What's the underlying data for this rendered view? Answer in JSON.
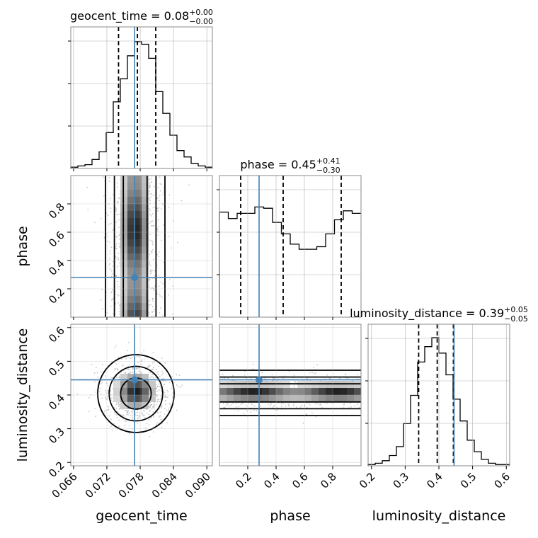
{
  "chart_data": {
    "type": "corner",
    "parameters": [
      "geocent_time",
      "phase",
      "luminosity_distance"
    ],
    "truth_color": "#4682b4",
    "truths": {
      "geocent_time": 0.077,
      "phase": 0.28,
      "luminosity_distance": 0.445
    },
    "axis_ranges": {
      "geocent_time": [
        0.0655,
        0.091
      ],
      "phase": [
        0.0,
        1.0
      ],
      "luminosity_distance": [
        0.19,
        0.61
      ]
    },
    "ticks": {
      "geocent_time": [
        "0.066",
        "0.072",
        "0.078",
        "0.084",
        "0.090"
      ],
      "phase": [
        "0.2",
        "0.4",
        "0.6",
        "0.8"
      ],
      "luminosity_distance": [
        "0.2",
        "0.3",
        "0.4",
        "0.5",
        "0.6"
      ]
    },
    "tick_values": {
      "geocent_time": [
        0.066,
        0.072,
        0.078,
        0.084,
        0.09
      ],
      "phase": [
        0.2,
        0.4,
        0.6,
        0.8
      ],
      "luminosity_distance": [
        0.2,
        0.3,
        0.4,
        0.5,
        0.6
      ]
    },
    "titles": [
      {
        "param": "geocent_time",
        "label": "geocent_time = 0.08",
        "sup": "+0.00",
        "sub": "−0.00"
      },
      {
        "param": "phase",
        "label": "phase = 0.45",
        "sup": "+0.41",
        "sub": "−0.30"
      },
      {
        "param": "luminosity_distance",
        "label": "luminosity_distance = 0.39",
        "sup": "+0.05",
        "sub": "−0.05"
      }
    ],
    "quantiles": {
      "geocent_time": [
        0.0741,
        0.0775,
        0.0808
      ],
      "phase": [
        0.15,
        0.45,
        0.86
      ],
      "luminosity_distance": [
        0.34,
        0.395,
        0.443
      ]
    },
    "histograms": {
      "geocent_time": [
        0.01,
        0.02,
        0.03,
        0.07,
        0.13,
        0.28,
        0.52,
        0.7,
        0.88,
        0.99,
        0.97,
        0.86,
        0.6,
        0.43,
        0.26,
        0.14,
        0.09,
        0.04,
        0.02,
        0.01
      ],
      "phase": [
        0.82,
        0.77,
        0.81,
        0.81,
        0.86,
        0.85,
        0.74,
        0.65,
        0.57,
        0.53,
        0.53,
        0.55,
        0.65,
        0.76,
        0.83,
        0.81
      ],
      "luminosity_distance": [
        0.01,
        0.02,
        0.04,
        0.08,
        0.15,
        0.33,
        0.55,
        0.81,
        0.93,
        1.0,
        0.88,
        0.71,
        0.52,
        0.35,
        0.2,
        0.11,
        0.05,
        0.02,
        0.01,
        0.01
      ]
    },
    "grid": true
  }
}
